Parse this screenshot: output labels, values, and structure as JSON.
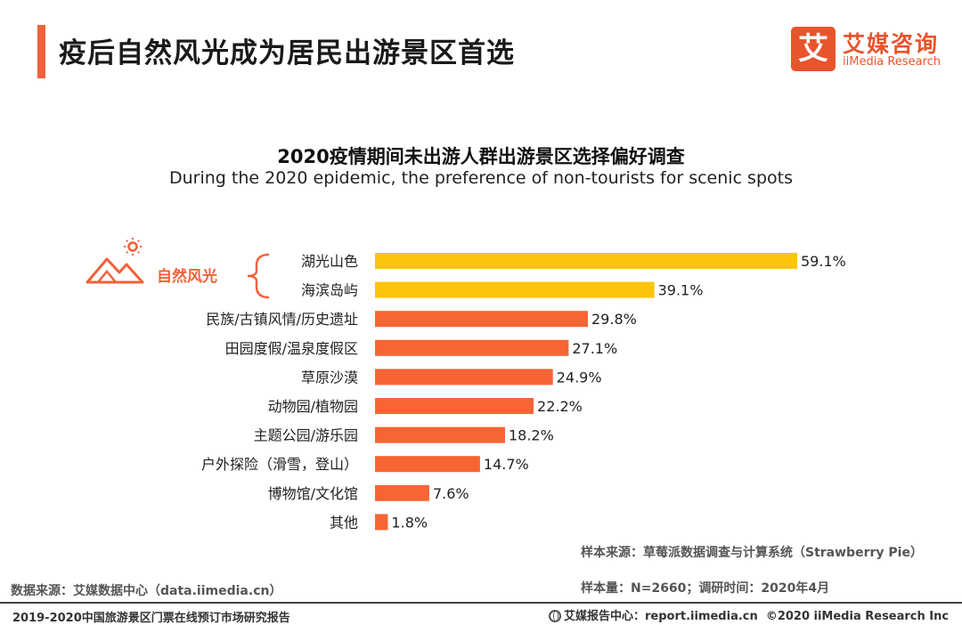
{
  "header": {
    "title": "疫后自然风光成为居民出游景区首选",
    "logo_mark": "艾",
    "logo_cn": "艾媒咨询",
    "logo_en": "iiMedia Research"
  },
  "colors": {
    "accent": "#f0623a",
    "highlight": "#fcc40a",
    "bar": "#f76535",
    "group_label": "#f0623a"
  },
  "group": {
    "label": "自然风光",
    "icon": "mountain-sun-icon"
  },
  "chart_data": {
    "type": "bar",
    "orientation": "horizontal",
    "title": "2020疫情期间未出游人群出游景区选择偏好调查",
    "subtitle": "During the 2020 epidemic, the preference of non-tourists for scenic spots",
    "categories": [
      "湖光山色",
      "海滨岛屿",
      "民族/古镇风情/历史遗址",
      "田园度假/温泉度假区",
      "草原沙漠",
      "动物园/植物园",
      "主题公园/游乐园",
      "户外探险（滑雪，登山）",
      "博物馆/文化馆",
      "其他"
    ],
    "values": [
      59.1,
      39.1,
      29.8,
      27.1,
      24.9,
      22.2,
      18.2,
      14.7,
      7.6,
      1.8
    ],
    "value_labels": [
      "59.1%",
      "39.1%",
      "29.8%",
      "27.1%",
      "24.9%",
      "22.2%",
      "18.2%",
      "14.7%",
      "7.6%",
      "1.8%"
    ],
    "unit": "%",
    "highlight_indices": [
      0,
      1
    ],
    "xlim": [
      0,
      59.1
    ],
    "grid": false,
    "xlabel": "",
    "ylabel": ""
  },
  "footer": {
    "data_source": "数据来源：艾媒数据中心（data.iimedia.cn）",
    "sample_source": "样本来源：草莓派数据调查与计算系统（Strawberry Pie）",
    "sample_size": "样本量：N=2660；调研时间：2020年4月",
    "report_name": "2019-2020中国旅游景区门票在线预订市场研究报告",
    "report_center": "艾媒报告中心：report.iimedia.cn",
    "copyright": "©2020  iiMedia Research  Inc"
  }
}
